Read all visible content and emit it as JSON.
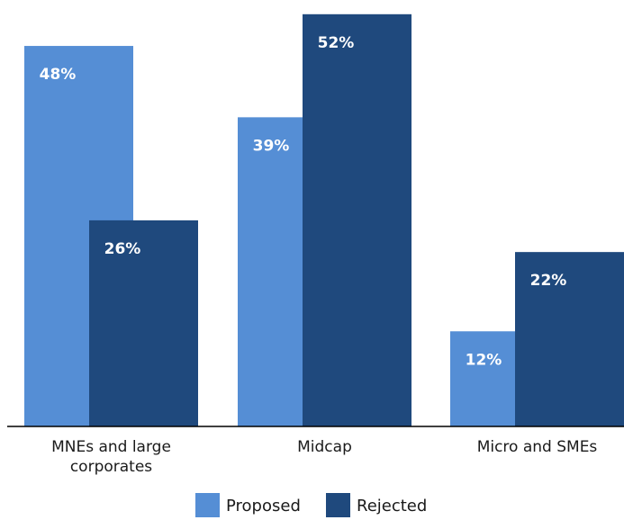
{
  "chart_data": {
    "type": "bar",
    "categories": [
      [
        "MNEs and large",
        "corporates"
      ],
      [
        "Midcap"
      ],
      [
        "Micro and SMEs"
      ]
    ],
    "series": [
      {
        "name": "Proposed",
        "color": "#558ed5",
        "values": [
          48,
          39,
          12
        ]
      },
      {
        "name": "Rejected",
        "color": "#1f497d",
        "values": [
          26,
          52,
          22
        ]
      }
    ],
    "value_suffix": "%",
    "ylim": [
      0,
      53
    ],
    "grid": false,
    "legend_position": "bottom",
    "axis_color": "#000000"
  }
}
